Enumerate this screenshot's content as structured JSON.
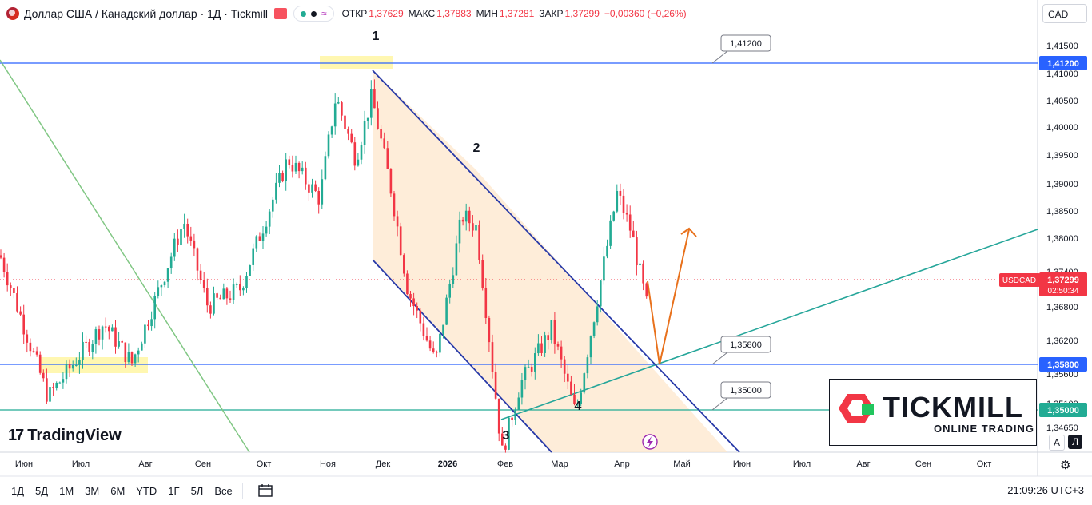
{
  "header": {
    "title": "Доллар США / Канадский доллар · 1Д · Tickmill",
    "approx_icon": "≈",
    "ohlc": [
      {
        "k": "ОТКР",
        "v": "1,37629"
      },
      {
        "k": "МАКС",
        "v": "1,37883"
      },
      {
        "k": "МИН",
        "v": "1,37281"
      },
      {
        "k": "ЗАКР",
        "v": "1,37299"
      }
    ],
    "change": "−0,00360 (−0,26%)",
    "currency": "CAD",
    "up_color": "#22ab94",
    "down_color": "#f23645"
  },
  "chart_data": {
    "type": "candlestick",
    "symbol": "USDCAD",
    "y_ticks": [
      "1,41500",
      "1,41000",
      "1,40500",
      "1,40000",
      "1,39500",
      "1,39000",
      "1,38500",
      "1,38000",
      "1,37400",
      "1,36800",
      "1,36200",
      "1,35600",
      "1,35100",
      "1,34650"
    ],
    "y_range": [
      1.3433,
      1.4242
    ],
    "x_ticks": [
      "Июн",
      "Июл",
      "Авг",
      "Сен",
      "Окт",
      "Ноя",
      "Дек",
      "2026",
      "Фев",
      "Мар",
      "Апр",
      "Май",
      "Июн",
      "Июл",
      "Авг",
      "Сен",
      "Окт"
    ],
    "bold_tick": "2026",
    "price_labels": [
      {
        "text": "1,41200",
        "value": 1.412,
        "color": "#2962ff"
      },
      {
        "text": "1,35800",
        "value": 1.358,
        "color": "#2962ff"
      },
      {
        "text": "1,35000",
        "value": 1.35,
        "color": "#22ab94"
      }
    ],
    "current": {
      "label": "USDCAD",
      "price": "1,37299",
      "timer": "02:50:34",
      "value": 1.37299,
      "color": "#f23645"
    },
    "callouts": [
      "1,41200",
      "1,35800",
      "1,35000"
    ],
    "wave_labels": [
      "1",
      "2",
      "3",
      "4"
    ],
    "anchors": [
      {
        "x": 0,
        "price": 1.384
      },
      {
        "x": 60,
        "price": 1.359
      },
      {
        "x": 130,
        "price": 1.372
      },
      {
        "x": 165,
        "price": 1.365
      },
      {
        "x": 230,
        "price": 1.39
      },
      {
        "x": 260,
        "price": 1.375
      },
      {
        "x": 300,
        "price": 1.378
      },
      {
        "x": 360,
        "price": 1.401
      },
      {
        "x": 400,
        "price": 1.394
      },
      {
        "x": 420,
        "price": 1.412
      },
      {
        "x": 445,
        "price": 1.401
      },
      {
        "x": 465,
        "price": 1.412
      },
      {
        "x": 490,
        "price": 1.395
      },
      {
        "x": 510,
        "price": 1.378
      },
      {
        "x": 545,
        "price": 1.365
      },
      {
        "x": 578,
        "price": 1.391
      },
      {
        "x": 596,
        "price": 1.389
      },
      {
        "x": 610,
        "price": 1.372
      },
      {
        "x": 628,
        "price": 1.349
      },
      {
        "x": 650,
        "price": 1.361
      },
      {
        "x": 690,
        "price": 1.371
      },
      {
        "x": 720,
        "price": 1.356
      },
      {
        "x": 740,
        "price": 1.371
      },
      {
        "x": 772,
        "price": 1.395
      },
      {
        "x": 790,
        "price": 1.388
      },
      {
        "x": 812,
        "price": 1.373
      }
    ]
  },
  "branding": {
    "tradingview": "TradingView",
    "tickmill_name": "TICKMILL",
    "tickmill_sub": "ONLINE TRADING"
  },
  "axis_buttons": {
    "a": "A",
    "l": "Л"
  },
  "bottom": {
    "timeframes": [
      "1Д",
      "5Д",
      "1М",
      "3М",
      "6М",
      "YTD",
      "1Г",
      "5Л",
      "Все"
    ],
    "clock": "21:09:26 UTC+3"
  }
}
